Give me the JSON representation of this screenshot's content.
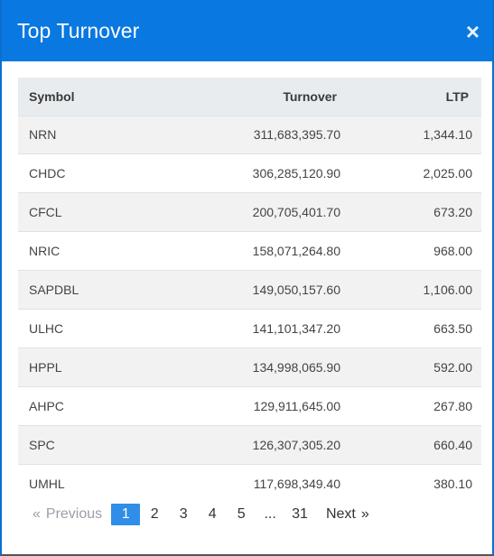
{
  "modal": {
    "title": "Top Turnover",
    "close_icon": "×"
  },
  "table": {
    "headers": {
      "symbol": "Symbol",
      "turnover": "Turnover",
      "ltp": "LTP"
    },
    "rows": [
      {
        "symbol": "NRN",
        "turnover": "311,683,395.70",
        "ltp": "1,344.10"
      },
      {
        "symbol": "CHDC",
        "turnover": "306,285,120.90",
        "ltp": "2,025.00"
      },
      {
        "symbol": "CFCL",
        "turnover": "200,705,401.70",
        "ltp": "673.20"
      },
      {
        "symbol": "NRIC",
        "turnover": "158,071,264.80",
        "ltp": "968.00"
      },
      {
        "symbol": "SAPDBL",
        "turnover": "149,050,157.60",
        "ltp": "1,106.00"
      },
      {
        "symbol": "ULHC",
        "turnover": "141,101,347.20",
        "ltp": "663.50"
      },
      {
        "symbol": "HPPL",
        "turnover": "134,998,065.90",
        "ltp": "592.00"
      },
      {
        "symbol": "AHPC",
        "turnover": "129,911,645.00",
        "ltp": "267.80"
      },
      {
        "symbol": "SPC",
        "turnover": "126,307,305.20",
        "ltp": "660.40"
      },
      {
        "symbol": "UMHL",
        "turnover": "117,698,349.40",
        "ltp": "380.10"
      }
    ]
  },
  "pagination": {
    "prev_arrow": "«",
    "prev_label": "Previous",
    "pages": [
      "1",
      "2",
      "3",
      "4",
      "5"
    ],
    "ellipsis": "...",
    "last_page": "31",
    "next_label": "Next",
    "next_arrow": "»",
    "current": "1"
  }
}
